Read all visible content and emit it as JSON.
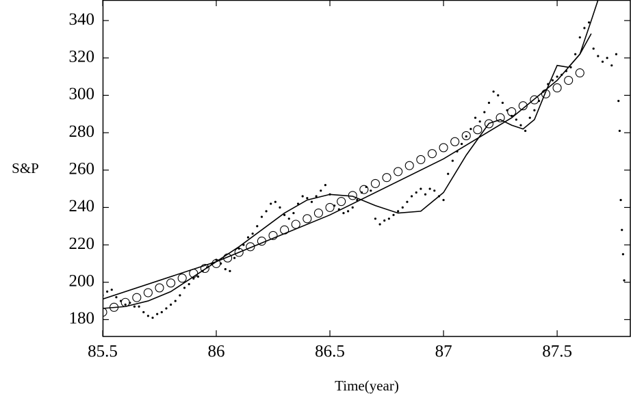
{
  "chart_data": {
    "type": "line",
    "xlabel": "Time(year)",
    "ylabel": "S&P",
    "xlim": [
      85.5,
      87.825
    ],
    "ylim": [
      171,
      351
    ],
    "xticks": [
      85.5,
      86,
      86.5,
      87,
      87.5
    ],
    "yticks": [
      180,
      200,
      220,
      240,
      260,
      280,
      300,
      320,
      340
    ],
    "series": [
      {
        "marker": "dot",
        "color": "#000000",
        "x": [
          85.5,
          85.52,
          85.54,
          85.56,
          85.58,
          85.6,
          85.62,
          85.64,
          85.66,
          85.68,
          85.7,
          85.72,
          85.74,
          85.76,
          85.78,
          85.8,
          85.82,
          85.84,
          85.86,
          85.88,
          85.9,
          85.92,
          85.94,
          85.96,
          85.98,
          86,
          86.02,
          86.04,
          86.06,
          86.08,
          86.1,
          86.12,
          86.14,
          86.16,
          86.18,
          86.2,
          86.22,
          86.24,
          86.26,
          86.28,
          86.3,
          86.32,
          86.34,
          86.36,
          86.38,
          86.4,
          86.42,
          86.44,
          86.46,
          86.48,
          86.5,
          86.52,
          86.54,
          86.56,
          86.58,
          86.6,
          86.62,
          86.64,
          86.66,
          86.68,
          86.7,
          86.72,
          86.74,
          86.76,
          86.78,
          86.8,
          86.82,
          86.84,
          86.86,
          86.88,
          86.9,
          86.92,
          86.94,
          86.96,
          86.98,
          87,
          87.02,
          87.04,
          87.06,
          87.08,
          87.1,
          87.12,
          87.14,
          87.16,
          87.18,
          87.2,
          87.22,
          87.24,
          87.26,
          87.28,
          87.3,
          87.32,
          87.34,
          87.36,
          87.38,
          87.4,
          87.42,
          87.44,
          87.46,
          87.48,
          87.5,
          87.52,
          87.54,
          87.56,
          87.58,
          87.6,
          87.62,
          87.64,
          87.66,
          87.68,
          87.7,
          87.72,
          87.74,
          87.76,
          87.77,
          87.775,
          87.78,
          87.785,
          87.79,
          87.795
        ],
        "values": [
          193,
          195,
          196,
          192,
          190,
          188,
          189,
          187,
          187,
          184,
          182,
          181,
          183,
          184,
          186,
          188,
          190,
          193,
          197,
          199,
          202,
          203,
          206,
          208,
          210,
          212,
          210,
          207,
          206,
          213,
          218,
          220,
          224,
          226,
          230,
          235,
          238,
          242,
          243,
          240,
          236,
          234,
          237,
          242,
          246,
          245,
          243,
          246,
          249,
          252,
          247,
          241,
          239,
          237,
          238,
          240,
          244,
          248,
          251,
          249,
          234,
          231,
          233,
          234,
          236,
          238,
          240,
          243,
          246,
          248,
          250,
          247,
          250,
          249,
          246,
          244,
          258,
          265,
          270,
          274,
          278,
          282,
          288,
          286,
          291,
          296,
          302,
          300,
          296,
          292,
          289,
          287,
          284,
          281,
          288,
          292,
          297,
          302,
          306,
          308,
          310,
          311,
          313,
          315,
          322,
          331,
          336,
          339,
          325,
          321,
          318,
          320,
          316,
          322,
          297,
          281,
          244,
          228,
          215,
          201
        ]
      },
      {
        "marker": "circle",
        "color": "#000000",
        "x": [
          85.5,
          85.55,
          85.6,
          85.65,
          85.7,
          85.75,
          85.8,
          85.85,
          85.9,
          85.95,
          86,
          86.05,
          86.1,
          86.15,
          86.2,
          86.25,
          86.3,
          86.35,
          86.4,
          86.45,
          86.5,
          86.55,
          86.6,
          86.65,
          86.7,
          86.75,
          86.8,
          86.85,
          86.9,
          86.95,
          87,
          87.05,
          87.1,
          87.15,
          87.2,
          87.25,
          87.3,
          87.35,
          87.4,
          87.45,
          87.5,
          87.55,
          87.6
        ],
        "values": [
          184,
          186.6,
          189.2,
          191.8,
          194.4,
          197,
          199.6,
          202.2,
          204.8,
          207.4,
          210,
          213,
          216,
          219,
          222,
          225,
          228,
          231,
          234,
          237,
          240,
          243.2,
          246.4,
          249.6,
          252.8,
          256,
          259.2,
          262.4,
          265.6,
          268.8,
          272,
          275.2,
          278.4,
          281.6,
          284.8,
          288,
          291.2,
          294.4,
          297.6,
          300.8,
          304,
          308,
          312
        ]
      },
      {
        "marker": "line",
        "color": "#000000",
        "x": [
          85.5,
          85.6,
          85.7,
          85.8,
          85.9,
          86,
          86.1,
          86.2,
          86.3,
          86.4,
          86.5,
          86.6,
          86.7,
          86.8,
          86.9,
          87,
          87.1,
          87.2,
          87.25,
          87.3,
          87.35,
          87.4,
          87.45,
          87.5,
          87.55,
          87.6,
          87.65,
          87.68
        ],
        "values": [
          186,
          187,
          190,
          195,
          203,
          211,
          219,
          228,
          237,
          244,
          247,
          246,
          241,
          237,
          238,
          248,
          268,
          285,
          287,
          284,
          282,
          287,
          302,
          316,
          315,
          322,
          340,
          351
        ]
      },
      {
        "marker": "line",
        "color": "#000000",
        "x": [
          85.5,
          86,
          86.5,
          87,
          87.3,
          87.5,
          87.6,
          87.65
        ],
        "values": [
          191,
          211,
          236,
          266,
          288,
          308,
          322,
          333
        ]
      }
    ]
  }
}
